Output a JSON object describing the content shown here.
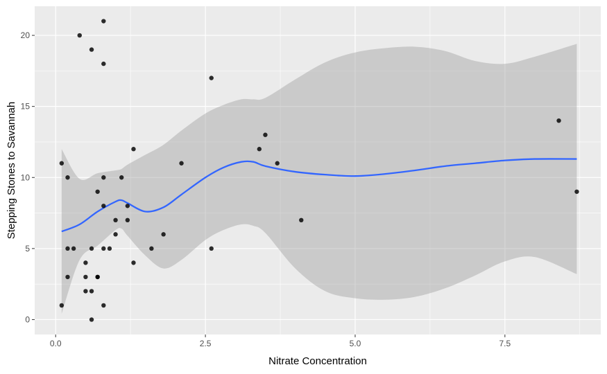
{
  "chart_data": {
    "type": "scatter",
    "title": "",
    "xlabel": "Nitrate Concentration",
    "ylabel": "Stepping Stones to Savannah",
    "xlim": [
      -0.35,
      9.1
    ],
    "ylim": [
      -1.05,
      22.05
    ],
    "x_ticks": [
      0,
      2.5,
      5,
      7.5
    ],
    "x_tick_labels": [
      "0.0",
      "2.5",
      "5.0",
      "7.5"
    ],
    "y_ticks": [
      0,
      5,
      10,
      15,
      20
    ],
    "y_tick_labels": [
      "0",
      "5",
      "10",
      "15",
      "20"
    ],
    "grid": true,
    "legend": "none",
    "colors": {
      "panel": "#ebebeb",
      "grid": "#ffffff",
      "point": "#000000",
      "smooth_line": "#3366ff",
      "confidence_band": "#999999"
    },
    "points": [
      {
        "x": 0.1,
        "y": 11
      },
      {
        "x": 0.1,
        "y": 1
      },
      {
        "x": 0.2,
        "y": 10
      },
      {
        "x": 0.2,
        "y": 5
      },
      {
        "x": 0.2,
        "y": 3
      },
      {
        "x": 0.3,
        "y": 5
      },
      {
        "x": 0.4,
        "y": 20
      },
      {
        "x": 0.5,
        "y": 4
      },
      {
        "x": 0.5,
        "y": 3
      },
      {
        "x": 0.5,
        "y": 2
      },
      {
        "x": 0.6,
        "y": 19
      },
      {
        "x": 0.6,
        "y": 5
      },
      {
        "x": 0.6,
        "y": 2
      },
      {
        "x": 0.6,
        "y": 0
      },
      {
        "x": 0.7,
        "y": 9
      },
      {
        "x": 0.7,
        "y": 3
      },
      {
        "x": 0.7,
        "y": 3
      },
      {
        "x": 0.8,
        "y": 21
      },
      {
        "x": 0.8,
        "y": 18
      },
      {
        "x": 0.8,
        "y": 10
      },
      {
        "x": 0.8,
        "y": 8
      },
      {
        "x": 0.8,
        "y": 5
      },
      {
        "x": 0.8,
        "y": 1
      },
      {
        "x": 0.9,
        "y": 5
      },
      {
        "x": 1.0,
        "y": 7
      },
      {
        "x": 1.0,
        "y": 6
      },
      {
        "x": 1.1,
        "y": 10
      },
      {
        "x": 1.2,
        "y": 8
      },
      {
        "x": 1.2,
        "y": 7
      },
      {
        "x": 1.3,
        "y": 12
      },
      {
        "x": 1.3,
        "y": 4
      },
      {
        "x": 1.6,
        "y": 5
      },
      {
        "x": 1.8,
        "y": 6
      },
      {
        "x": 2.1,
        "y": 11
      },
      {
        "x": 2.6,
        "y": 17
      },
      {
        "x": 2.6,
        "y": 5
      },
      {
        "x": 3.4,
        "y": 12
      },
      {
        "x": 3.5,
        "y": 13
      },
      {
        "x": 3.7,
        "y": 11
      },
      {
        "x": 4.1,
        "y": 7
      },
      {
        "x": 8.4,
        "y": 14
      },
      {
        "x": 8.7,
        "y": 9
      }
    ],
    "smooth": {
      "x": [
        0.1,
        0.4,
        0.7,
        1.0,
        1.1,
        1.2,
        1.5,
        1.8,
        2.1,
        2.5,
        2.8,
        3.1,
        3.3,
        3.5,
        4.0,
        4.5,
        5.0,
        5.5,
        6.0,
        6.5,
        7.0,
        7.5,
        8.0,
        8.7
      ],
      "y": [
        6.2,
        6.7,
        7.6,
        8.3,
        8.4,
        8.2,
        7.6,
        7.9,
        8.8,
        10.0,
        10.7,
        11.1,
        11.1,
        10.8,
        10.4,
        10.2,
        10.1,
        10.25,
        10.5,
        10.8,
        11.0,
        11.2,
        11.3,
        11.3
      ],
      "lower": [
        0.4,
        4.2,
        5.2,
        6.3,
        6.4,
        5.9,
        4.5,
        3.6,
        4.2,
        5.6,
        6.3,
        6.7,
        6.6,
        6.1,
        3.6,
        2.0,
        1.5,
        1.4,
        1.6,
        2.2,
        3.1,
        4.1,
        4.4,
        3.2
      ],
      "upper": [
        12.0,
        9.9,
        10.3,
        10.5,
        10.6,
        10.9,
        11.6,
        12.3,
        13.3,
        14.5,
        15.1,
        15.5,
        15.5,
        15.6,
        16.9,
        18.1,
        18.8,
        19.1,
        19.2,
        18.9,
        18.2,
        18.0,
        18.5,
        19.4
      ]
    }
  }
}
